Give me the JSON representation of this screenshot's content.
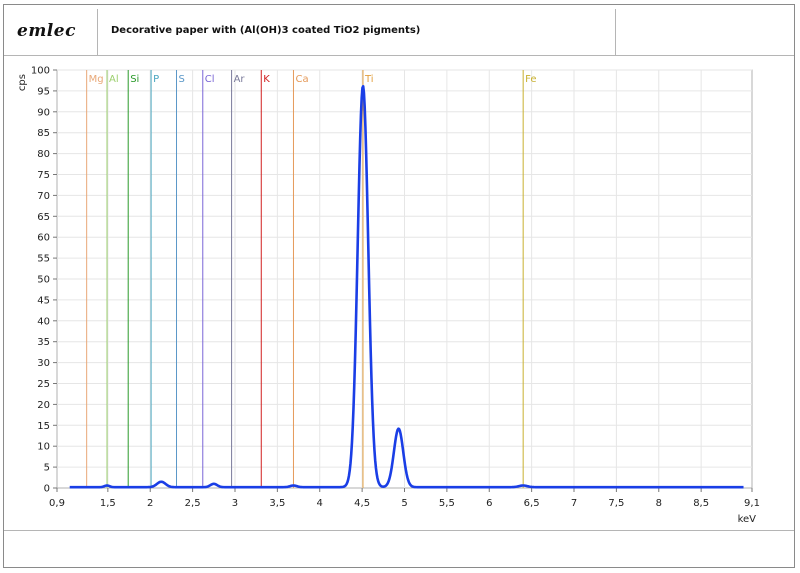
{
  "header": {
    "logo": "emlec",
    "title": "Decorative paper with (Al(OH)3 coated TiO2 pigments)"
  },
  "chart_data": {
    "type": "line",
    "xlabel": "keV",
    "ylabel": "cps",
    "xlim": [
      0.9,
      9.1
    ],
    "ylim": [
      0,
      100
    ],
    "grid": true,
    "x_ticks": [
      "0,9",
      "1,5",
      "2",
      "2,5",
      "3",
      "3,5",
      "4",
      "4,5",
      "5",
      "5,5",
      "6",
      "6,5",
      "7",
      "7,5",
      "8",
      "8,5",
      "9,1"
    ],
    "x_tick_values": [
      0.9,
      1.5,
      2,
      2.5,
      3,
      3.5,
      4,
      4.5,
      5,
      5.5,
      6,
      6.5,
      7,
      7.5,
      8,
      8.5,
      9.1
    ],
    "y_ticks": [
      0,
      5,
      10,
      15,
      20,
      25,
      30,
      35,
      40,
      45,
      50,
      55,
      60,
      65,
      70,
      75,
      80,
      85,
      90,
      95,
      100
    ],
    "element_lines": [
      {
        "label": "Mg",
        "x": 1.25,
        "color": "#e8a878"
      },
      {
        "label": "Al",
        "x": 1.49,
        "color": "#9ccf6e"
      },
      {
        "label": "Si",
        "x": 1.74,
        "color": "#2a9a2a"
      },
      {
        "label": "P",
        "x": 2.01,
        "color": "#49a6c0"
      },
      {
        "label": "S",
        "x": 2.31,
        "color": "#5b98c8"
      },
      {
        "label": "Cl",
        "x": 2.62,
        "color": "#7a66d6"
      },
      {
        "label": "Ar",
        "x": 2.96,
        "color": "#7a7a9a"
      },
      {
        "label": "K",
        "x": 3.31,
        "color": "#d12020"
      },
      {
        "label": "Ca",
        "x": 3.69,
        "color": "#e59a5a"
      },
      {
        "label": "Ti",
        "x": 4.51,
        "color": "#e2a040"
      },
      {
        "label": "Fe",
        "x": 6.4,
        "color": "#c8b030"
      }
    ],
    "series": [
      {
        "color": "#1a3ee6",
        "peaks": [
          {
            "center": 1.49,
            "height": 0.4,
            "sigma": 0.03
          },
          {
            "center": 2.13,
            "height": 1.3,
            "sigma": 0.05
          },
          {
            "center": 2.75,
            "height": 0.8,
            "sigma": 0.04
          },
          {
            "center": 3.69,
            "height": 0.4,
            "sigma": 0.04
          },
          {
            "center": 4.51,
            "height": 96,
            "sigma": 0.062
          },
          {
            "center": 4.93,
            "height": 14,
            "sigma": 0.055
          },
          {
            "center": 6.4,
            "height": 0.4,
            "sigma": 0.05
          }
        ],
        "baseline": 0.2,
        "x_start": 1.05,
        "x_end": 9.0
      }
    ]
  }
}
